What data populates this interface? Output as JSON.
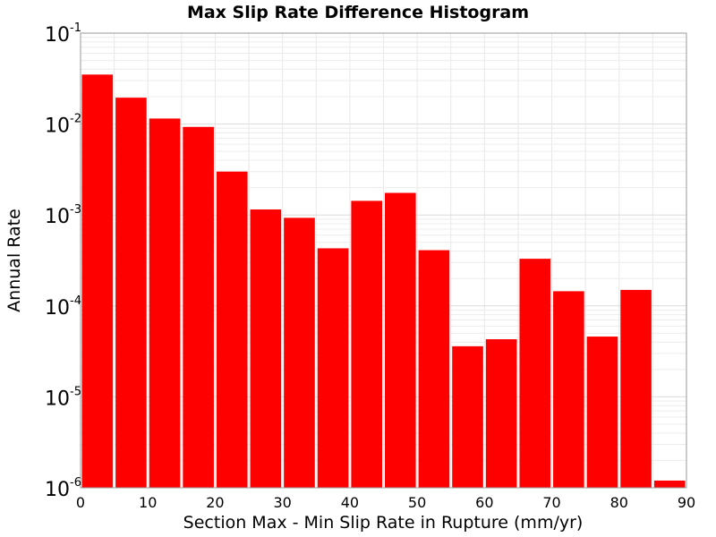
{
  "chart_data": {
    "type": "bar",
    "title": "Max Slip Rate Difference Histogram",
    "xlabel": "Section Max - Min Slip Rate in Rupture (mm/yr)",
    "ylabel": "Annual Rate",
    "xlim": [
      0,
      90
    ],
    "ylim": [
      1e-06,
      0.1
    ],
    "yscale": "log",
    "bin_width": 5,
    "bar_color": "#ff0000",
    "grid": true,
    "legend": "none",
    "x_ticks": [
      "0",
      "10",
      "20",
      "30",
      "40",
      "50",
      "60",
      "70",
      "80",
      "90"
    ],
    "y_ticks": [
      {
        "base": "10",
        "exp": "-6"
      },
      {
        "base": "10",
        "exp": "-5"
      },
      {
        "base": "10",
        "exp": "-4"
      },
      {
        "base": "10",
        "exp": "-3"
      },
      {
        "base": "10",
        "exp": "-2"
      },
      {
        "base": "10",
        "exp": "-1"
      }
    ],
    "bins": [
      {
        "x": 2.5,
        "value": 0.035
      },
      {
        "x": 7.5,
        "value": 0.0195
      },
      {
        "x": 12.5,
        "value": 0.0115
      },
      {
        "x": 17.5,
        "value": 0.0093
      },
      {
        "x": 22.5,
        "value": 0.003
      },
      {
        "x": 27.5,
        "value": 0.00115
      },
      {
        "x": 32.5,
        "value": 0.00093
      },
      {
        "x": 37.5,
        "value": 0.00043
      },
      {
        "x": 42.5,
        "value": 0.00143
      },
      {
        "x": 47.5,
        "value": 0.00175
      },
      {
        "x": 52.5,
        "value": 0.00041
      },
      {
        "x": 57.5,
        "value": 3.6e-05
      },
      {
        "x": 62.5,
        "value": 4.3e-05
      },
      {
        "x": 67.5,
        "value": 0.00033
      },
      {
        "x": 72.5,
        "value": 0.000145
      },
      {
        "x": 77.5,
        "value": 4.6e-05
      },
      {
        "x": 82.5,
        "value": 0.00015
      },
      {
        "x": 87.5,
        "value": 1.2e-06
      }
    ]
  }
}
